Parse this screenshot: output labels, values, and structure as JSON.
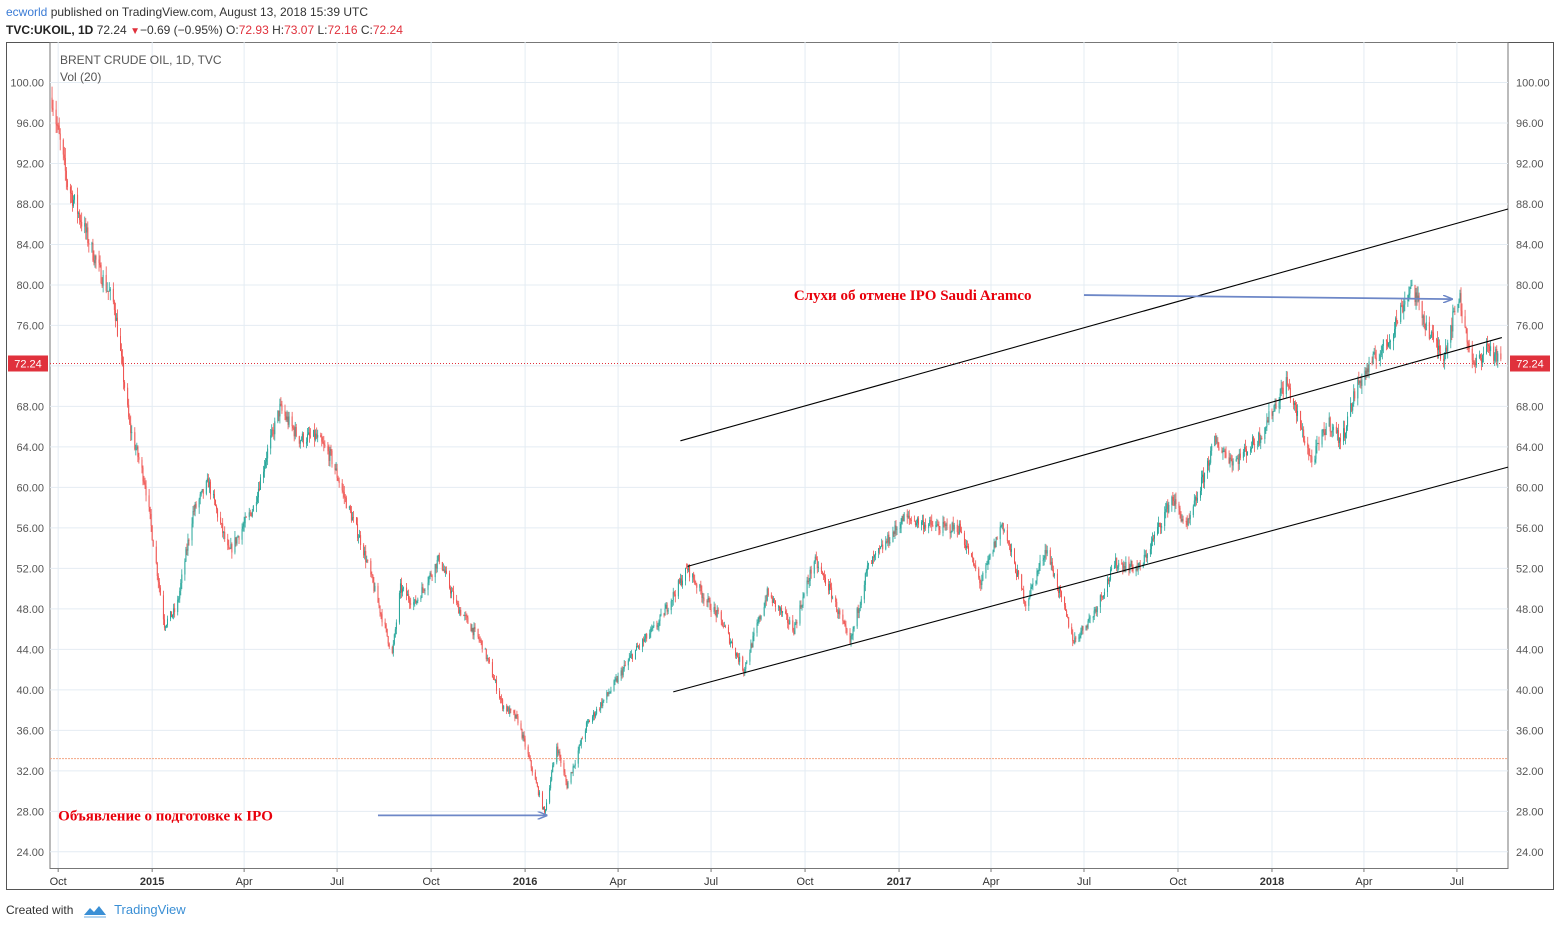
{
  "header": {
    "user": "ecworld",
    "published": "published on TradingView.com, August 13, 2018 15:39 UTC",
    "symbol": "TVC:UKOIL, 1D",
    "last": "72.24",
    "change": "−0.69 (−0.95%)",
    "o_label": "O:",
    "o": "72.93",
    "h_label": "H:",
    "h": "73.07",
    "l_label": "L:",
    "l": "72.16",
    "c_label": "C:",
    "c": "72.24"
  },
  "footer": {
    "created": "Created with",
    "brand": "TradingView",
    "logo_icon": "tradingview-logo-icon"
  },
  "colors": {
    "up": "#26a69a",
    "down": "#ef5350",
    "price_line": "#e0313c",
    "support": "#f4a582",
    "annotation": "#e8000b",
    "arrow": "#6d87c7",
    "trend": "#000000"
  },
  "chart_data": {
    "type": "candlestick",
    "title": "BRENT CRUDE OIL, 1D, TVC",
    "indicator": "Vol (20)",
    "x_range": [
      "2014-09-23",
      "2018-08-20"
    ],
    "ylim": [
      22.4,
      104.0
    ],
    "y_ticks": [
      "100.00",
      "96.00",
      "92.00",
      "88.00",
      "84.00",
      "80.00",
      "76.00",
      "72.00",
      "68.00",
      "64.00",
      "60.00",
      "56.00",
      "52.00",
      "48.00",
      "44.00",
      "40.00",
      "36.00",
      "32.00",
      "28.00",
      "24.00"
    ],
    "x_ticks": [
      {
        "label": "Oct",
        "date": "2014-10-01",
        "major": false
      },
      {
        "label": "2015",
        "date": "2015-01-01",
        "major": true
      },
      {
        "label": "Apr",
        "date": "2015-04-01",
        "major": false
      },
      {
        "label": "Jul",
        "date": "2015-07-01",
        "major": false
      },
      {
        "label": "Oct",
        "date": "2015-10-01",
        "major": false
      },
      {
        "label": "2016",
        "date": "2016-01-01",
        "major": true
      },
      {
        "label": "Apr",
        "date": "2016-04-01",
        "major": false
      },
      {
        "label": "Jul",
        "date": "2016-07-01",
        "major": false
      },
      {
        "label": "Oct",
        "date": "2016-10-01",
        "major": false
      },
      {
        "label": "2017",
        "date": "2017-01-01",
        "major": true
      },
      {
        "label": "Apr",
        "date": "2017-04-01",
        "major": false
      },
      {
        "label": "Jul",
        "date": "2017-07-01",
        "major": false
      },
      {
        "label": "Oct",
        "date": "2017-10-01",
        "major": false
      },
      {
        "label": "2018",
        "date": "2018-01-01",
        "major": true
      },
      {
        "label": "Apr",
        "date": "2018-04-01",
        "major": false
      },
      {
        "label": "Jul",
        "date": "2018-07-01",
        "major": false
      }
    ],
    "price_path": [
      [
        "2014-09-25",
        98.5
      ],
      [
        "2014-10-10",
        90.0
      ],
      [
        "2014-10-25",
        86.0
      ],
      [
        "2014-11-10",
        81.5
      ],
      [
        "2014-11-25",
        78.0
      ],
      [
        "2014-12-10",
        66.0
      ],
      [
        "2014-12-25",
        60.5
      ],
      [
        "2015-01-13",
        46.5
      ],
      [
        "2015-01-25",
        48.0
      ],
      [
        "2015-02-10",
        57.5
      ],
      [
        "2015-02-25",
        60.5
      ],
      [
        "2015-03-17",
        53.5
      ],
      [
        "2015-04-10",
        58.0
      ],
      [
        "2015-04-25",
        64.0
      ],
      [
        "2015-05-06",
        67.8
      ],
      [
        "2015-05-25",
        64.8
      ],
      [
        "2015-06-10",
        65.0
      ],
      [
        "2015-06-25",
        63.0
      ],
      [
        "2015-07-10",
        58.5
      ],
      [
        "2015-07-25",
        54.5
      ],
      [
        "2015-08-24",
        43.5
      ],
      [
        "2015-09-01",
        50.0
      ],
      [
        "2015-09-15",
        48.5
      ],
      [
        "2015-10-09",
        53.0
      ],
      [
        "2015-10-25",
        48.5
      ],
      [
        "2015-11-20",
        44.5
      ],
      [
        "2015-12-10",
        38.5
      ],
      [
        "2015-12-25",
        37.0
      ],
      [
        "2016-01-20",
        27.8
      ],
      [
        "2016-02-01",
        34.5
      ],
      [
        "2016-02-11",
        30.5
      ],
      [
        "2016-03-01",
        36.5
      ],
      [
        "2016-03-25",
        40.0
      ],
      [
        "2016-04-15",
        43.5
      ],
      [
        "2016-05-10",
        46.5
      ],
      [
        "2016-06-08",
        52.0
      ],
      [
        "2016-06-25",
        49.0
      ],
      [
        "2016-07-10",
        47.0
      ],
      [
        "2016-08-02",
        42.0
      ],
      [
        "2016-08-25",
        49.5
      ],
      [
        "2016-09-20",
        46.0
      ],
      [
        "2016-10-10",
        52.8
      ],
      [
        "2016-10-25",
        50.0
      ],
      [
        "2016-11-14",
        44.5
      ],
      [
        "2016-12-01",
        52.0
      ],
      [
        "2017-01-06",
        57.0
      ],
      [
        "2017-02-10",
        56.0
      ],
      [
        "2017-03-01",
        56.0
      ],
      [
        "2017-03-22",
        50.5
      ],
      [
        "2017-04-12",
        56.5
      ],
      [
        "2017-05-05",
        48.5
      ],
      [
        "2017-05-25",
        54.0
      ],
      [
        "2017-06-21",
        44.8
      ],
      [
        "2017-07-10",
        47.5
      ],
      [
        "2017-08-01",
        52.5
      ],
      [
        "2017-08-25",
        52.0
      ],
      [
        "2017-09-25",
        59.0
      ],
      [
        "2017-10-10",
        56.0
      ],
      [
        "2017-11-06",
        64.5
      ],
      [
        "2017-11-25",
        62.5
      ],
      [
        "2017-12-20",
        65.0
      ],
      [
        "2018-01-15",
        70.5
      ],
      [
        "2018-02-09",
        62.5
      ],
      [
        "2018-02-25",
        66.5
      ],
      [
        "2018-03-10",
        64.5
      ],
      [
        "2018-03-25",
        70.0
      ],
      [
        "2018-04-10",
        72.5
      ],
      [
        "2018-04-25",
        74.5
      ],
      [
        "2018-05-17",
        80.0
      ],
      [
        "2018-06-05",
        75.0
      ],
      [
        "2018-06-18",
        73.0
      ],
      [
        "2018-07-03",
        79.0
      ],
      [
        "2018-07-17",
        71.8
      ],
      [
        "2018-07-31",
        74.0
      ],
      [
        "2018-08-13",
        72.24
      ]
    ],
    "current_price": 72.24,
    "current_price_label": "72.24",
    "support_level": 33.2,
    "trend_lines": [
      {
        "name": "upper-channel",
        "from": [
          "2016-06-01",
          64.6
        ],
        "to": [
          "2018-08-20",
          87.5
        ]
      },
      {
        "name": "middle-channel",
        "from": [
          "2016-06-08",
          52.2
        ],
        "to": [
          "2018-08-14",
          74.8
        ]
      },
      {
        "name": "lower-channel",
        "from": [
          "2016-05-25",
          39.8
        ],
        "to": [
          "2018-08-20",
          62.0
        ]
      }
    ],
    "annotations": [
      {
        "text": "Объявление о подготовке к IPO",
        "at": [
          "2014-10-01",
          27.6
        ],
        "arrow_from": [
          "2015-08-10",
          27.6
        ],
        "arrow_to": [
          "2016-01-22",
          27.6
        ]
      },
      {
        "text": "Слухи об отмене IPO Saudi Aramco",
        "at": [
          "2016-09-20",
          79.0
        ],
        "arrow_from": [
          "2017-07-01",
          79.0
        ],
        "arrow_to": [
          "2018-06-26",
          78.6
        ]
      }
    ]
  }
}
